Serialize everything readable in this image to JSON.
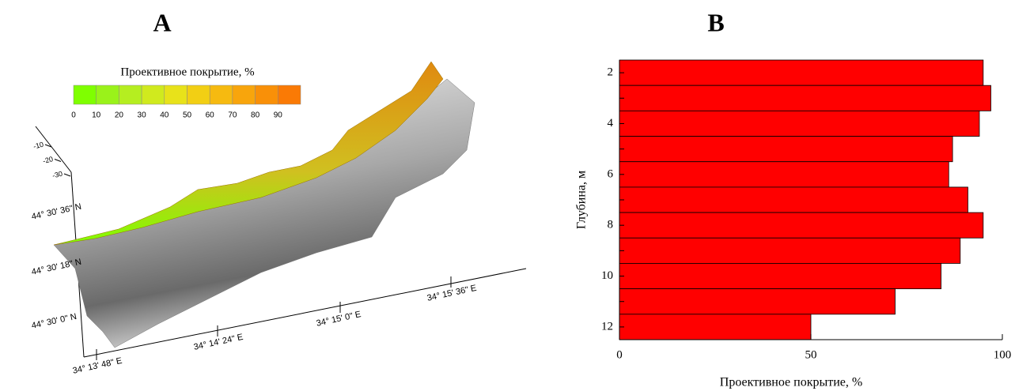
{
  "chart_data": [
    {
      "type": "surface",
      "title": "A",
      "colorbar": {
        "label": "Проективное покрытие, %",
        "ticks": [
          0,
          10,
          20,
          30,
          40,
          50,
          60,
          70,
          80,
          90
        ],
        "colors": [
          "#7fff00",
          "#9af21a",
          "#b5ee20",
          "#d0ea1e",
          "#e8e21a",
          "#f2cf14",
          "#f6ba10",
          "#f8a50c",
          "#f99008",
          "#fa7a05"
        ]
      },
      "zticks": [
        -10,
        -20,
        -30
      ],
      "lat_labels": [
        "44° 30' 36\" N",
        "44° 30' 18\" N",
        "44° 30' 0\" N"
      ],
      "lon_labels": [
        "34° 13' 48\" E",
        "34° 14' 24\" E",
        "34° 15' 0\" E",
        "34° 15' 36\" E"
      ]
    },
    {
      "type": "bar",
      "orientation": "horizontal",
      "title": "B",
      "categories": [
        2,
        null,
        4,
        null,
        6,
        null,
        8,
        null,
        10,
        null,
        12
      ],
      "values": [
        95,
        97,
        94,
        87,
        86,
        91,
        95,
        89,
        84,
        72,
        50
      ],
      "color": "#ff0000",
      "xlim": [
        0,
        100
      ],
      "xticks": [
        0,
        50,
        100
      ],
      "xlabel": "Проективное покрытие, %",
      "ylabel": "Глубина, м"
    }
  ]
}
